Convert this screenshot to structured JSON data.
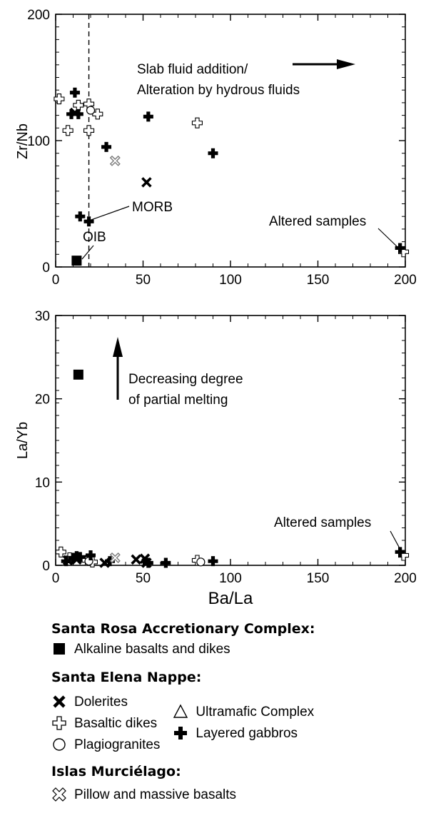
{
  "chart_data": [
    {
      "type": "scatter",
      "xlabel": "",
      "ylabel": "Zr/Nb",
      "xlim": [
        0,
        200
      ],
      "ylim": [
        0,
        200
      ],
      "xticks": [
        0,
        50,
        100,
        150,
        200
      ],
      "yticks": [
        0,
        100,
        200
      ],
      "xtick_labels": [
        "0",
        "50",
        "100",
        "150",
        "200"
      ],
      "ytick_labels": [
        "0",
        "100",
        "200"
      ],
      "reference_line": {
        "x": 19,
        "style": "dashed"
      },
      "annotations": [
        {
          "text": "Slab fluid addition/",
          "line": 1
        },
        {
          "text": "Alteration by hydrous fluids",
          "line": 2
        },
        {
          "text": "MORB"
        },
        {
          "text": "OIB"
        },
        {
          "text": "Altered samples"
        }
      ],
      "series": [
        {
          "name": "Alkaline basalts and dikes",
          "marker": "square",
          "points": [
            [
              12,
              5
            ]
          ]
        },
        {
          "name": "Dolerites",
          "marker": "x",
          "points": [
            [
              11,
              122
            ],
            [
              52,
              67
            ]
          ]
        },
        {
          "name": "Basaltic dikes",
          "marker": "open-cross",
          "points": [
            [
              2,
              133
            ],
            [
              7,
              108
            ],
            [
              13,
              128
            ],
            [
              19,
              129
            ],
            [
              19,
              108
            ],
            [
              24,
              121
            ],
            [
              81,
              114
            ],
            [
              199,
              12
            ]
          ]
        },
        {
          "name": "Plagiogranites",
          "marker": "circle",
          "points": [
            [
              20,
              124
            ]
          ]
        },
        {
          "name": "Layered gabbros",
          "marker": "filled-cross",
          "points": [
            [
              11,
              138
            ],
            [
              9,
              121
            ],
            [
              13,
              121
            ],
            [
              14,
              40
            ],
            [
              19,
              36
            ],
            [
              29,
              95
            ],
            [
              53,
              119
            ],
            [
              90,
              90
            ],
            [
              197,
              15
            ]
          ]
        },
        {
          "name": "Pillow and massive basalts",
          "marker": "open-x",
          "points": [
            [
              34,
              84
            ]
          ]
        }
      ]
    },
    {
      "type": "scatter",
      "xlabel": "Ba/La",
      "ylabel": "La/Yb",
      "xlim": [
        0,
        200
      ],
      "ylim": [
        0,
        30
      ],
      "xticks": [
        0,
        50,
        100,
        150,
        200
      ],
      "yticks": [
        0,
        10,
        20,
        30
      ],
      "xtick_labels": [
        "0",
        "50",
        "100",
        "150",
        "200"
      ],
      "ytick_labels": [
        "0",
        "10",
        "20",
        "30"
      ],
      "annotations": [
        {
          "text": "Decreasing degree",
          "line": 1
        },
        {
          "text": "of partial melting",
          "line": 2
        },
        {
          "text": "Altered samples"
        }
      ],
      "series": [
        {
          "name": "Alkaline basalts and dikes",
          "marker": "square",
          "points": [
            [
              13,
              22.9
            ]
          ]
        },
        {
          "name": "Dolerites",
          "marker": "x",
          "points": [
            [
              7,
              0.6
            ],
            [
              12,
              0.7
            ],
            [
              28,
              0.3
            ],
            [
              46,
              0.7
            ],
            [
              51,
              0.8
            ],
            [
              52,
              0.3
            ]
          ]
        },
        {
          "name": "Basaltic dikes",
          "marker": "open-cross",
          "points": [
            [
              3,
              1.6
            ],
            [
              8,
              0.9
            ],
            [
              18,
              0.6
            ],
            [
              21,
              0.4
            ],
            [
              81,
              0.6
            ],
            [
              199,
              1.2
            ]
          ]
        },
        {
          "name": "Plagiogranites",
          "marker": "circle",
          "points": [
            [
              19,
              0.5
            ],
            [
              83,
              0.4
            ]
          ]
        },
        {
          "name": "Layered gabbros",
          "marker": "filled-cross",
          "points": [
            [
              6,
              0.5
            ],
            [
              10,
              0.9
            ],
            [
              12,
              1.1
            ],
            [
              14,
              1.0
            ],
            [
              20,
              1.2
            ],
            [
              31,
              0.5
            ],
            [
              53,
              0.3
            ],
            [
              63,
              0.3
            ],
            [
              90,
              0.5
            ],
            [
              197,
              1.6
            ]
          ]
        },
        {
          "name": "Pillow and massive basalts",
          "marker": "open-x",
          "points": [
            [
              34,
              0.9
            ]
          ]
        }
      ]
    }
  ],
  "legend": {
    "groups": [
      {
        "heading": "Santa Rosa Accretionary Complex:",
        "items": [
          {
            "label": "Alkaline basalts and dikes",
            "icon": "filled-square-icon"
          }
        ]
      },
      {
        "heading": "Santa Elena Nappe:",
        "left": [
          {
            "label": "Dolerites",
            "icon": "bold-x-icon"
          },
          {
            "label": "Basaltic dikes",
            "icon": "open-cross-icon"
          },
          {
            "label": "Plagiogranites",
            "icon": "open-circle-icon"
          }
        ],
        "right": [
          {
            "label": "Ultramafic Complex",
            "icon": "open-triangle-icon"
          },
          {
            "label": "Layered gabbros",
            "icon": "filled-cross-icon"
          }
        ]
      },
      {
        "heading": "Islas Murciélago:",
        "items": [
          {
            "label": "Pillow and massive basalts",
            "icon": "open-x-icon"
          }
        ]
      }
    ]
  },
  "colors": {
    "ink": "#000000",
    "marker_gray": "#7a7a7a",
    "background": "#ffffff"
  }
}
